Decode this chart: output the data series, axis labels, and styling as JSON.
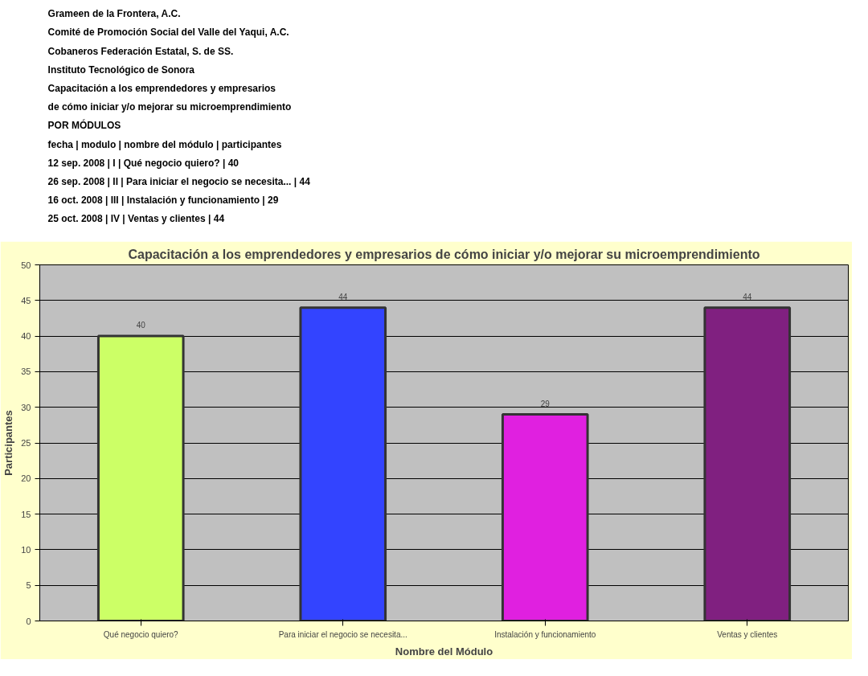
{
  "chart_data": {
    "type": "bar",
    "title": "Capacitación a los emprendedores y empresarios de cómo iniciar y/o mejorar su microemprendimiento",
    "annotations": [
      "Grameen de la Frontera, A.C.",
      "Comité de Promoción Social del Valle del Yaqui, A.C.",
      "Cobaneros Federación Estatal, S. de SS.",
      "Instituto Tecnológico de Sonora",
      "Capacitación a los emprendedores y empresarios",
      "de cómo iniciar y/o mejorar su microemprendimiento",
      "POR MÓDULOS",
      "fecha | modulo | nombre del módulo | participantes",
      "12 sep. 2008 | I | Qué negocio quiero? | 40",
      "26 sep. 2008 | II | Para iniciar el negocio se necesita... | 44",
      "16 oct. 2008 | III | Instalación y funcionamiento | 29",
      "25 oct. 2008 | IV | Ventas y clientes | 44"
    ],
    "xlabel": "Nombre del Módulo",
    "ylabel": "Participantes",
    "categories": [
      "Qué negocio quiero?",
      "Para iniciar el negocio se necesita...",
      "Instalación y funcionamiento",
      "Ventas y clientes"
    ],
    "values": [
      40,
      44,
      29,
      44
    ],
    "colors": [
      "#ccff66",
      "#3344ff",
      "#e020e0",
      "#802080"
    ],
    "ylim": [
      0,
      50
    ],
    "yticks": [
      0,
      5,
      10,
      15,
      20,
      25,
      30,
      35,
      40,
      45,
      50
    ],
    "grid": "y",
    "data_labels": true
  }
}
